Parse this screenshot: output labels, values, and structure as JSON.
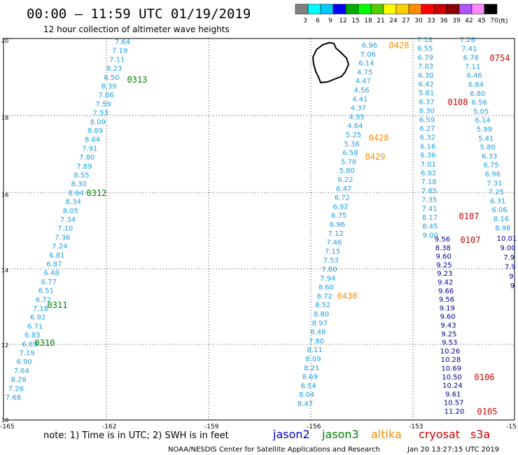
{
  "header": {
    "title": "00:00 — 11:59 UTC 01/19/2019",
    "subtitle": "12 hour collection of altimeter wave heights"
  },
  "legend": {
    "unit": "(ft)",
    "bins": [
      {
        "label": "3",
        "color": "#808080"
      },
      {
        "label": "6",
        "color": "#00ffff"
      },
      {
        "label": "9",
        "color": "#00c8ff"
      },
      {
        "label": "12",
        "color": "#0000ff"
      },
      {
        "label": "15",
        "color": "#00aa00"
      },
      {
        "label": "18",
        "color": "#00ff00"
      },
      {
        "label": "21",
        "color": "#55cc00"
      },
      {
        "label": "24",
        "color": "#ffff00"
      },
      {
        "label": "27",
        "color": "#ffd000"
      },
      {
        "label": "30",
        "color": "#ff8c00"
      },
      {
        "label": "33",
        "color": "#ff0000"
      },
      {
        "label": "36",
        "color": "#cc0000"
      },
      {
        "label": "39",
        "color": "#8b0000"
      },
      {
        "label": "42",
        "color": "#aa55ff"
      },
      {
        "label": "45",
        "color": "#ff88ff"
      },
      {
        "label": "70",
        "color": "#000000"
      }
    ]
  },
  "map": {
    "lon_labels": [
      "-165",
      "-162",
      "-159",
      "-156",
      "-153",
      "-15"
    ],
    "lat_labels": [
      "20",
      "18",
      "16",
      "14",
      "12",
      "10"
    ]
  },
  "colors": {
    "jason2": "#0000cc",
    "jason3": "#008000",
    "altika": "#ff8c00",
    "cryosat": "#cc0000",
    "s3a": "#cc0000",
    "light": "#1e9ee0",
    "dark": "#00008b"
  },
  "tracks": [
    {
      "id": "jason3-west",
      "color": "light",
      "values": [
        "7.64",
        "7.19",
        "7.11",
        "8.23",
        "8.50",
        "8.39",
        "7.06",
        "7.59",
        "7.53",
        "8.09",
        "8.89",
        "8.64",
        "7.91",
        "7.80",
        "7.89",
        "8.55",
        "8.30",
        "8.64",
        "8.34",
        "8.05",
        "7.34",
        "7.10",
        "7.36",
        "7.24",
        "6.81",
        "6.87",
        "6.48",
        "6.77",
        "6.51",
        "6.72",
        "7.18",
        "6.92",
        "6.71",
        "6.83",
        "6.69",
        "7.19",
        "6.90",
        "7.64",
        "8.28",
        "7.26",
        "7.68"
      ]
    },
    {
      "id": "altika-mid",
      "color": "light",
      "values": [
        "6.96",
        "7.06",
        "6.14",
        "4.75",
        "4.47",
        "4.56",
        "4.41",
        "4.37",
        "4.55",
        "4.64",
        "5.25",
        "5.36",
        "6.58",
        "5.78",
        "5.80",
        "6.22",
        "6.47",
        "6.72",
        "6.92",
        "6.75",
        "6.96",
        "7.12",
        "7.46",
        "7.15",
        "7.53",
        "7.80",
        "7.94",
        "8.60",
        "8.72",
        "8.52",
        "8.80",
        "8.97",
        "8.48",
        "7.80",
        "8.11",
        "8.09",
        "8.21",
        "8.69",
        "8.54",
        "8.04",
        "8.47"
      ]
    },
    {
      "id": "cryosat-mid",
      "color": "light",
      "values": [
        "7.18",
        "6.55",
        "6.79",
        "7.03",
        "6.30",
        "6.42",
        "5.81",
        "6.37",
        "6.30",
        "6.59",
        "6.27",
        "6.32",
        "6.16",
        "6.36",
        "7.01",
        "6.92",
        "7.18",
        "7.85",
        "7.35",
        "7.41",
        "8.17",
        "8.45",
        "9.00"
      ]
    },
    {
      "id": "cryosat-mid-dark",
      "color": "dark",
      "values": [
        "9.56",
        "8.38",
        "9.60",
        "9.25",
        "9.23",
        "9.42",
        "9.66",
        "9.56",
        "9.19",
        "9.60",
        "9.43",
        "9.25",
        "9.53",
        "10.26",
        "10.28",
        "10.69",
        "10.50",
        "10.24",
        "9.61",
        "10.57",
        "11.20"
      ]
    },
    {
      "id": "s3a-east",
      "color": "light",
      "values": [
        "7.26",
        "7.41",
        "6.78",
        "7.11",
        "6.46",
        "6.84",
        "6.80",
        "6.56",
        "5.05",
        "6.14",
        "5.99",
        "5.41",
        "5.80",
        "6.33",
        "6.75",
        "6.96",
        "7.31",
        "7.25",
        "6.31",
        "6.06",
        "8.16",
        "8.98"
      ]
    },
    {
      "id": "s3a-east-dark",
      "color": "dark",
      "values": [
        "10.01",
        "9.00",
        "7.9",
        "7.9",
        "9",
        "9"
      ]
    }
  ],
  "times": [
    {
      "label": "0313",
      "color": "#008000"
    },
    {
      "label": "0312",
      "color": "#008000"
    },
    {
      "label": "0311",
      "color": "#008000"
    },
    {
      "label": "0310",
      "color": "#008000"
    },
    {
      "label": "0428",
      "color": "#ff8c00"
    },
    {
      "label": "0428",
      "color": "#ff8c00"
    },
    {
      "label": "0429",
      "color": "#ff8c00"
    },
    {
      "label": "0430",
      "color": "#ff8c00"
    },
    {
      "label": "0754",
      "color": "#cc0000"
    },
    {
      "label": "0108",
      "color": "#cc0000"
    },
    {
      "label": "0107",
      "color": "#cc0000"
    },
    {
      "label": "0107",
      "color": "#cc0000"
    },
    {
      "label": "0106",
      "color": "#cc0000"
    },
    {
      "label": "0105",
      "color": "#cc0000"
    }
  ],
  "footer": {
    "note": "note:  1) Time is in UTC;  2) SWH is in feet",
    "satellites": [
      {
        "label": "jason2",
        "color": "#0000cc"
      },
      {
        "label": "jason3",
        "color": "#008000"
      },
      {
        "label": "altika",
        "color": "#ff8c00"
      },
      {
        "label": "cryosat",
        "color": "#cc0000"
      },
      {
        "label": "s3a",
        "color": "#cc0000"
      }
    ],
    "credit": "NOAA/NESDIS Center for Satellite Applications and Research",
    "timestamp": "Jan 20 13:27:15 UTC 2019"
  }
}
